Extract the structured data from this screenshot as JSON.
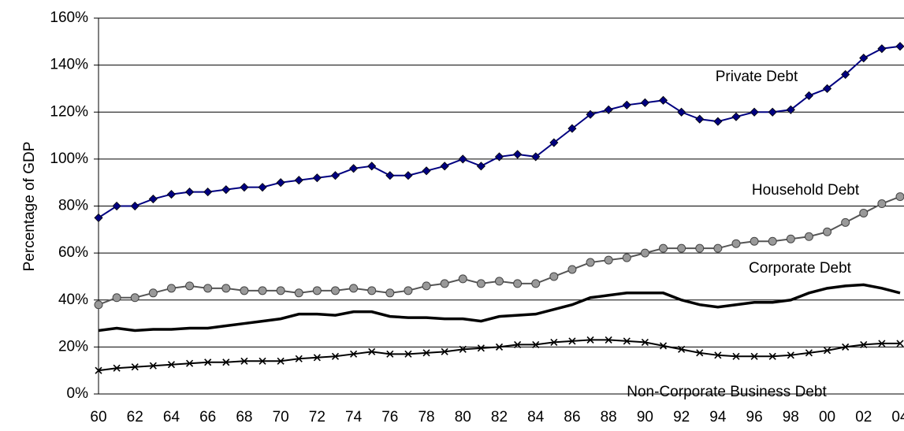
{
  "chart_data": {
    "type": "line",
    "y_label": "Percentage of GDP",
    "categories": [
      "60",
      null,
      "62",
      null,
      "64",
      null,
      "66",
      null,
      "68",
      null,
      "70",
      null,
      "72",
      null,
      "74",
      null,
      "76",
      null,
      "78",
      null,
      "80",
      null,
      "82",
      null,
      "84",
      null,
      "86",
      null,
      "88",
      null,
      "90",
      null,
      "92",
      null,
      "94",
      null,
      "96",
      null,
      "98",
      null,
      "00",
      null,
      "02",
      null,
      "04"
    ],
    "series": [
      {
        "name": "Private Debt",
        "color": "#000080",
        "marker": "diamond",
        "values": [
          75,
          80,
          80,
          83,
          85,
          86,
          86,
          87,
          88,
          88,
          90,
          91,
          92,
          93,
          96,
          97,
          93,
          93,
          95,
          97,
          100,
          97,
          101,
          102,
          101,
          107,
          113,
          119,
          121,
          123,
          124,
          125,
          120,
          117,
          116,
          118,
          120,
          120,
          121,
          127,
          130,
          136,
          143,
          147,
          148
        ]
      },
      {
        "name": "Household Debt",
        "color": "#999999",
        "marker": "circle",
        "values": [
          38,
          41,
          41,
          43,
          45,
          46,
          45,
          45,
          44,
          44,
          44,
          43,
          44,
          44,
          45,
          44,
          43,
          44,
          46,
          47,
          49,
          47,
          48,
          47,
          47,
          50,
          53,
          56,
          57,
          58,
          60,
          62,
          62,
          62,
          62,
          64,
          65,
          65,
          66,
          67,
          69,
          73,
          77,
          81,
          84
        ]
      },
      {
        "name": "Corporate Debt",
        "color": "#000000",
        "marker": "none",
        "values": [
          27,
          28,
          27,
          27.5,
          27.5,
          28,
          28,
          29,
          30,
          31,
          32,
          34,
          34,
          33.5,
          35,
          35,
          33,
          32.5,
          32.5,
          32,
          32,
          31,
          33,
          33.5,
          34,
          36,
          38,
          41,
          42,
          43,
          43,
          43,
          40,
          38,
          37,
          38,
          39,
          39,
          40,
          43,
          45,
          46,
          46.5,
          45,
          43
        ]
      },
      {
        "name": "Non-Corporate Business Debt",
        "color": "#000000",
        "marker": "x",
        "values": [
          10,
          11,
          11.5,
          12,
          12.5,
          13,
          13.5,
          13.5,
          14,
          14,
          14,
          15,
          15.5,
          16,
          17,
          18,
          17,
          17,
          17.5,
          18,
          19,
          19.5,
          20,
          21,
          21,
          22,
          22.5,
          23,
          23,
          22.5,
          22,
          20.5,
          19,
          17.5,
          16.5,
          16,
          16,
          16,
          16.5,
          17.5,
          18.5,
          20,
          21,
          21.5,
          21.5
        ]
      }
    ],
    "ylim": [
      0,
      160
    ],
    "yticks": [
      {
        "value": 0,
        "label": "0%"
      },
      {
        "value": 20,
        "label": "20%"
      },
      {
        "value": 40,
        "label": "40%"
      },
      {
        "value": 60,
        "label": "60%"
      },
      {
        "value": 80,
        "label": "80%"
      },
      {
        "value": 100,
        "label": "100%"
      },
      {
        "value": 120,
        "label": "120%"
      },
      {
        "value": 140,
        "label": "140%"
      },
      {
        "value": 160,
        "label": "160%"
      }
    ],
    "grid": true
  }
}
